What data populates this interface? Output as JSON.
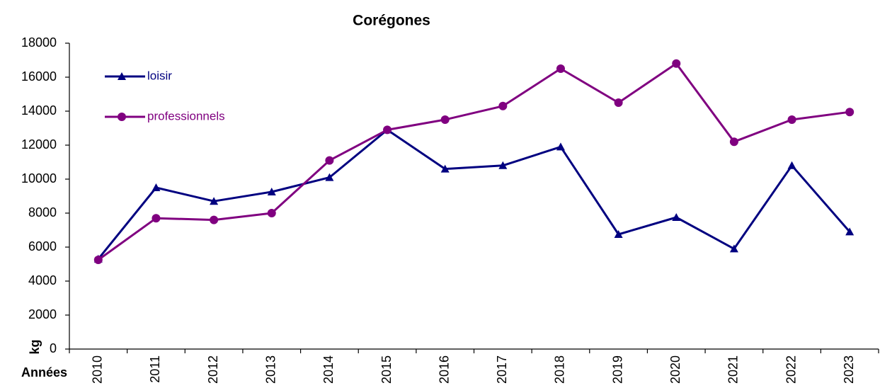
{
  "chart_data": {
    "type": "line",
    "title": "Corégones",
    "y_label": "kg",
    "x_label": "Années",
    "categories": [
      "2010",
      "2011",
      "2012",
      "2013",
      "2014",
      "2015",
      "2016",
      "2017",
      "2018",
      "2019",
      "2020",
      "2021",
      "2022",
      "2023"
    ],
    "series": [
      {
        "name": "loisir",
        "color": "#000080",
        "marker": "triangle",
        "values": [
          5300,
          9500,
          8700,
          9250,
          10100,
          12900,
          10600,
          10800,
          11900,
          6750,
          7750,
          5900,
          10800,
          6900
        ]
      },
      {
        "name": "professionnels",
        "color": "#800080",
        "marker": "circle",
        "values": [
          5250,
          7700,
          7600,
          8000,
          11100,
          12900,
          13500,
          14300,
          16500,
          14500,
          16800,
          12200,
          13500,
          13950
        ]
      }
    ],
    "ylim": [
      0,
      18000
    ],
    "yticks": [
      0,
      2000,
      4000,
      6000,
      8000,
      10000,
      12000,
      14000,
      16000,
      18000
    ],
    "grid": false,
    "legend": "upper left"
  }
}
